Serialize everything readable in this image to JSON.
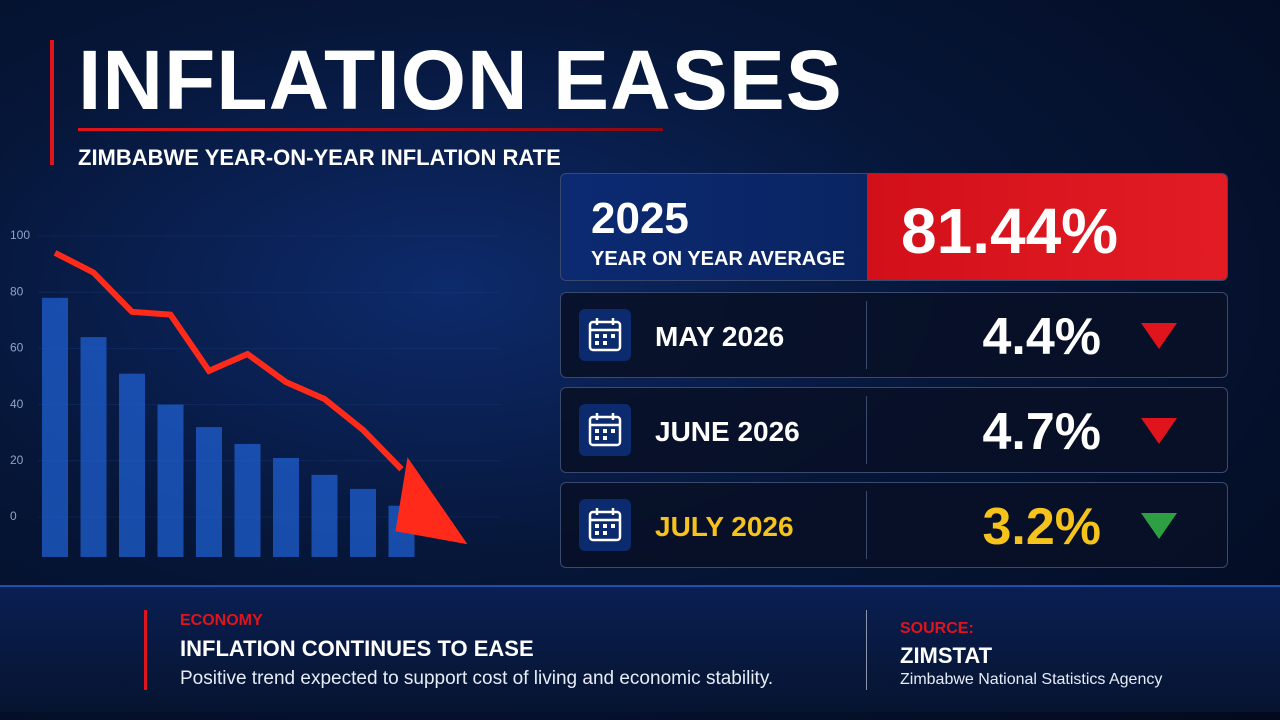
{
  "header": {
    "title": "INFLATION EASES",
    "subtitle": "ZIMBABWE YEAR-ON-YEAR INFLATION RATE"
  },
  "chart_data": {
    "type": "bar",
    "categories": [
      null,
      null,
      null,
      null,
      null,
      null,
      null,
      null,
      null,
      null
    ],
    "values": [
      78,
      64,
      51,
      40,
      32,
      26,
      21,
      15,
      10,
      4
    ],
    "color": "#1f5fd0",
    "trend_values": [
      94,
      87,
      73,
      72,
      52,
      58,
      48,
      42,
      31,
      17
    ],
    "trend_color": "#ff2a1a",
    "ylim": [
      0,
      100
    ],
    "yticks": [
      0,
      20,
      40,
      60,
      80,
      100
    ]
  },
  "highlight": {
    "year": "2025",
    "label": "YEAR ON YEAR AVERAGE",
    "value": "81.44%"
  },
  "months": [
    {
      "label": "MAY 2026",
      "value": "4.4%",
      "text_color": "#ffffff",
      "arrow_color": "#e0141c"
    },
    {
      "label": "JUNE 2026",
      "value": "4.7%",
      "text_color": "#ffffff",
      "arrow_color": "#e0141c"
    },
    {
      "label": "JULY 2026",
      "value": "3.2%",
      "text_color": "#f6c21c",
      "arrow_color": "#2ea043"
    }
  ],
  "footer": {
    "category": "ECONOMY",
    "headline": "INFLATION CONTINUES TO EASE",
    "text": "Positive trend expected to support cost of living and economic stability.",
    "source_label": "SOURCE:",
    "source": "ZIMSTAT",
    "source_full": "Zimbabwe National Statistics Agency"
  }
}
